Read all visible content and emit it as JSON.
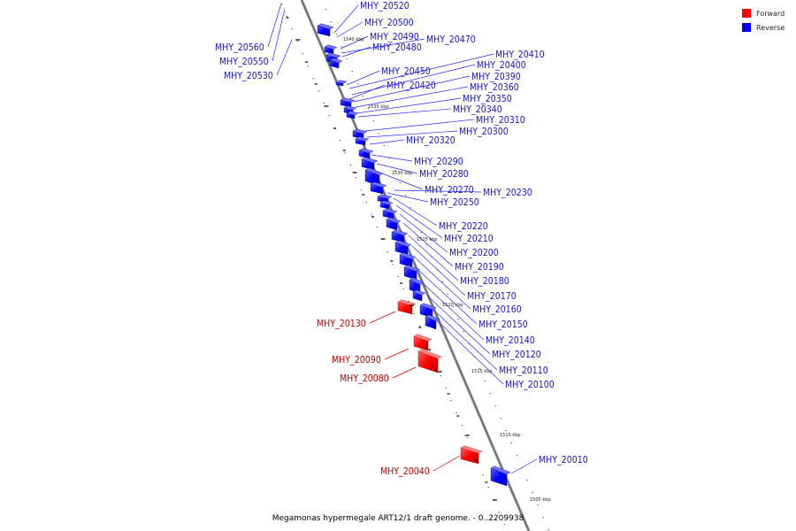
{
  "caption": "Megamonas hypermegale ART12/1 draft genome. - 0..2209938",
  "legend": [
    {
      "label": "Forward",
      "color": "#ff0000"
    },
    {
      "label": "Reverse",
      "color": "#0000ff"
    }
  ],
  "ticks": [
    "1540 kbp",
    "1535 kbp",
    "1530 kbp",
    "1525 kbp",
    "1520 kbp",
    "1515 kbp",
    "1510 kbp",
    "1505 kbp"
  ],
  "genes": [
    {
      "name": "MHY_20520",
      "strand": "reverse"
    },
    {
      "name": "MHY_20500",
      "strand": "reverse"
    },
    {
      "name": "MHY_20490",
      "strand": "reverse"
    },
    {
      "name": "MHY_20480",
      "strand": "reverse"
    },
    {
      "name": "MHY_20470",
      "strand": "reverse"
    },
    {
      "name": "MHY_20560",
      "strand": "reverse"
    },
    {
      "name": "MHY_20550",
      "strand": "reverse"
    },
    {
      "name": "MHY_20530",
      "strand": "reverse"
    },
    {
      "name": "MHY_20410",
      "strand": "reverse"
    },
    {
      "name": "MHY_20400",
      "strand": "reverse"
    },
    {
      "name": "MHY_20450",
      "strand": "reverse"
    },
    {
      "name": "MHY_20390",
      "strand": "reverse"
    },
    {
      "name": "MHY_20420",
      "strand": "reverse"
    },
    {
      "name": "MHY_20360",
      "strand": "reverse"
    },
    {
      "name": "MHY_20350",
      "strand": "reverse"
    },
    {
      "name": "MHY_20340",
      "strand": "reverse"
    },
    {
      "name": "MHY_20310",
      "strand": "reverse"
    },
    {
      "name": "MHY_20300",
      "strand": "reverse"
    },
    {
      "name": "MHY_20320",
      "strand": "reverse"
    },
    {
      "name": "MHY_20290",
      "strand": "reverse"
    },
    {
      "name": "MHY_20280",
      "strand": "reverse"
    },
    {
      "name": "MHY_20270",
      "strand": "reverse"
    },
    {
      "name": "MHY_20230",
      "strand": "reverse"
    },
    {
      "name": "MHY_20250",
      "strand": "reverse"
    },
    {
      "name": "MHY_20220",
      "strand": "reverse"
    },
    {
      "name": "MHY_20210",
      "strand": "reverse"
    },
    {
      "name": "MHY_20200",
      "strand": "reverse"
    },
    {
      "name": "MHY_20190",
      "strand": "reverse"
    },
    {
      "name": "MHY_20180",
      "strand": "reverse"
    },
    {
      "name": "MHY_20170",
      "strand": "reverse"
    },
    {
      "name": "MHY_20160",
      "strand": "reverse"
    },
    {
      "name": "MHY_20130",
      "strand": "forward"
    },
    {
      "name": "MHY_20150",
      "strand": "reverse"
    },
    {
      "name": "MHY_20140",
      "strand": "reverse"
    },
    {
      "name": "MHY_20120",
      "strand": "reverse"
    },
    {
      "name": "MHY_20090",
      "strand": "forward"
    },
    {
      "name": "MHY_20110",
      "strand": "reverse"
    },
    {
      "name": "MHY_20080",
      "strand": "forward"
    },
    {
      "name": "MHY_20100",
      "strand": "reverse"
    },
    {
      "name": "MHY_20010",
      "strand": "reverse"
    },
    {
      "name": "MHY_20040",
      "strand": "forward"
    }
  ]
}
